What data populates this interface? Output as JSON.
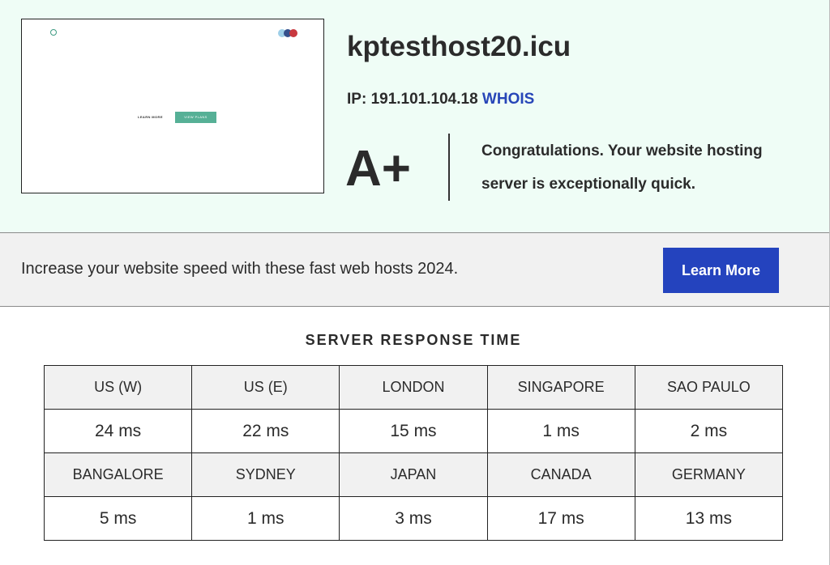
{
  "result": {
    "domain": "kptesthost20.icu",
    "ip_label": "IP:",
    "ip_address": "191.101.104.18",
    "whois_label": "WHOIS",
    "grade": "A+",
    "message": "Congratulations. Your website hosting server is exceptionally quick.",
    "thumbnail": {
      "learn_more": "LEARN MORE",
      "view_plans": "VIEW PLANS"
    }
  },
  "promo": {
    "text": "Increase your website speed with these fast web hosts 2024.",
    "button_label": "Learn More"
  },
  "response_time": {
    "title": "SERVER RESPONSE TIME",
    "locations": [
      {
        "name": "US (W)",
        "time": "24 ms"
      },
      {
        "name": "US (E)",
        "time": "22 ms"
      },
      {
        "name": "LONDON",
        "time": "15 ms"
      },
      {
        "name": "SINGAPORE",
        "time": "1 ms"
      },
      {
        "name": "SAO PAULO",
        "time": "2 ms"
      },
      {
        "name": "BANGALORE",
        "time": "5 ms"
      },
      {
        "name": "SYDNEY",
        "time": "1 ms"
      },
      {
        "name": "JAPAN",
        "time": "3 ms"
      },
      {
        "name": "CANADA",
        "time": "17 ms"
      },
      {
        "name": "GERMANY",
        "time": "13 ms"
      }
    ]
  },
  "colors": {
    "result_background": "#effdf6",
    "accent_blue": "#2443be",
    "whois_link": "#2746b8",
    "thumbnail_button": "#56b096"
  }
}
